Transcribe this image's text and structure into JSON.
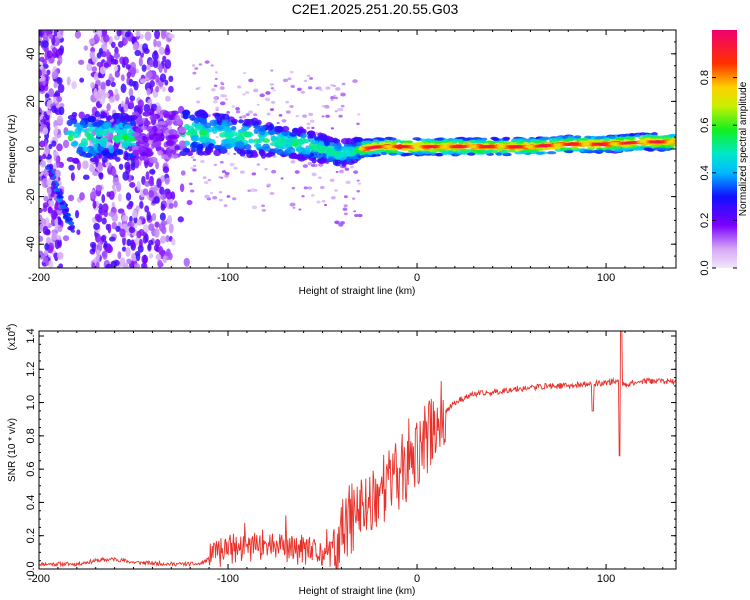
{
  "title": "C2E1.2025.251.20.55.G03",
  "chart_data": [
    {
      "type": "heatmap",
      "name": "spectrogram",
      "xlabel": "Height of straight line (km)",
      "ylabel": "Frequency (Hz)",
      "xlim": [
        -200,
        137
      ],
      "ylim": [
        -50,
        50
      ],
      "xticks": [
        -200,
        -100,
        0,
        100
      ],
      "xtick_labels": [
        "-200",
        "-100",
        "0",
        "100"
      ],
      "yticks": [
        -40,
        -20,
        0,
        20,
        40
      ],
      "ytick_labels": [
        "-40",
        "-20",
        "0",
        "20",
        "40"
      ],
      "colorbar": {
        "label": "Normalized spectral amplitude",
        "range": [
          0,
          1
        ],
        "ticks": [
          0.0,
          0.2,
          0.4,
          0.6,
          0.8
        ],
        "tick_labels": [
          "0.0",
          "0.2",
          "0.4",
          "0.6",
          "0.8"
        ]
      },
      "ridge_frequency_hz": {
        "x": [
          -195,
          -180,
          -160,
          -140,
          -120,
          -100,
          -80,
          -60,
          -50,
          -40,
          -30,
          -20,
          -10,
          0,
          20,
          40,
          60,
          80,
          100,
          120,
          137
        ],
        "y": [
          5,
          5,
          5,
          5,
          7,
          6,
          4,
          2,
          0,
          -2,
          0,
          1,
          1,
          1,
          1,
          1,
          1,
          2,
          2,
          3,
          3
        ]
      }
    },
    {
      "type": "line",
      "name": "snr",
      "xlabel": "Height of straight line (km)",
      "ylabel": "SNR (10 * v/v)",
      "y_scale_label": "(x10",
      "y_scale_exp": "4",
      "y_scale_close": ")",
      "xlim": [
        -200,
        137
      ],
      "ylim": [
        0,
        1.43
      ],
      "xticks": [
        -200,
        -100,
        0,
        100
      ],
      "xtick_labels": [
        "-200",
        "-100",
        "0",
        "100"
      ],
      "yticks": [
        0.0,
        0.2,
        0.4,
        0.6,
        0.8,
        1.0,
        1.2,
        1.4
      ],
      "ytick_labels": [
        "0.0",
        "0.2",
        "0.4",
        "0.6",
        "0.8",
        "1.0",
        "1.2",
        "1.4"
      ],
      "color": "#e8312a",
      "x": [
        -200,
        -180,
        -170,
        -160,
        -150,
        -130,
        -115,
        -110,
        -100,
        -90,
        -80,
        -70,
        -60,
        -55,
        -45,
        -42,
        -40,
        -35,
        -30,
        -25,
        -20,
        -15,
        -10,
        -5,
        0,
        5,
        10,
        15,
        20,
        25,
        30,
        40,
        50,
        60,
        70,
        80,
        90,
        100,
        105,
        110,
        115,
        120,
        130,
        137
      ],
      "y": [
        0.03,
        0.03,
        0.05,
        0.06,
        0.04,
        0.03,
        0.03,
        0.06,
        0.12,
        0.13,
        0.15,
        0.12,
        0.11,
        0.1,
        0.08,
        0.06,
        0.2,
        0.3,
        0.35,
        0.4,
        0.48,
        0.52,
        0.55,
        0.6,
        0.68,
        0.78,
        0.88,
        0.95,
        1.0,
        1.03,
        1.05,
        1.06,
        1.08,
        1.09,
        1.1,
        1.1,
        1.11,
        1.12,
        1.13,
        1.11,
        1.12,
        1.13,
        1.13,
        1.12
      ]
    }
  ]
}
